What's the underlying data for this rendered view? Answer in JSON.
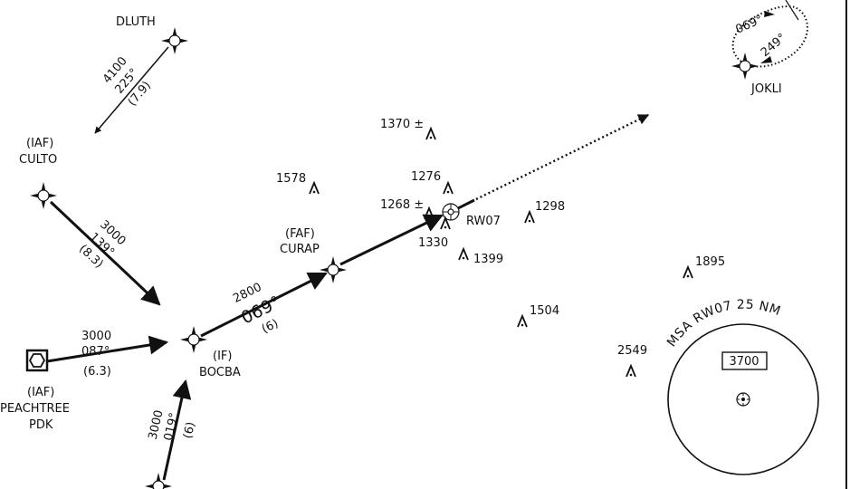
{
  "chart": {
    "colors": {
      "ink": "#111111",
      "background": "#ffffff"
    },
    "fixes": {
      "dluth": {
        "name": "DLUTH"
      },
      "culto": {
        "role": "(IAF)",
        "name": "CULTO"
      },
      "curap": {
        "role": "(FAF)",
        "name": "CURAP"
      },
      "bocba": {
        "role": "(IF)",
        "name": "BOCBA"
      },
      "jokli": {
        "name": "JOKLI"
      },
      "peachtree": {
        "role": "(IAF)",
        "name": "PEACHTREE",
        "ident": "PDK"
      }
    },
    "runway": {
      "label": "RW07"
    },
    "segments": {
      "dluth_culto": {
        "altitude": "4100",
        "course": "225°",
        "distance": "(7.9)"
      },
      "culto_bocba": {
        "altitude": "3000",
        "course": "139°",
        "distance": "(8.3)"
      },
      "pdk_bocba": {
        "altitude": "3000",
        "course": "087°",
        "distance": "(6.3)"
      },
      "south_bocba": {
        "altitude": "3000",
        "course": "019°",
        "distance": "(6)"
      },
      "final": {
        "altitude": "2800",
        "course": "069°",
        "distance": "(6)"
      }
    },
    "holding": {
      "inbound": "069°",
      "outbound": "249°"
    },
    "obstacles": [
      "1370 ±",
      "1276",
      "1268 ±",
      "1330",
      "1298",
      "1578",
      "1399",
      "1504",
      "1895",
      "2549"
    ],
    "msa": {
      "label": "MSA RW07 25 NM",
      "altitude": "3700"
    }
  }
}
